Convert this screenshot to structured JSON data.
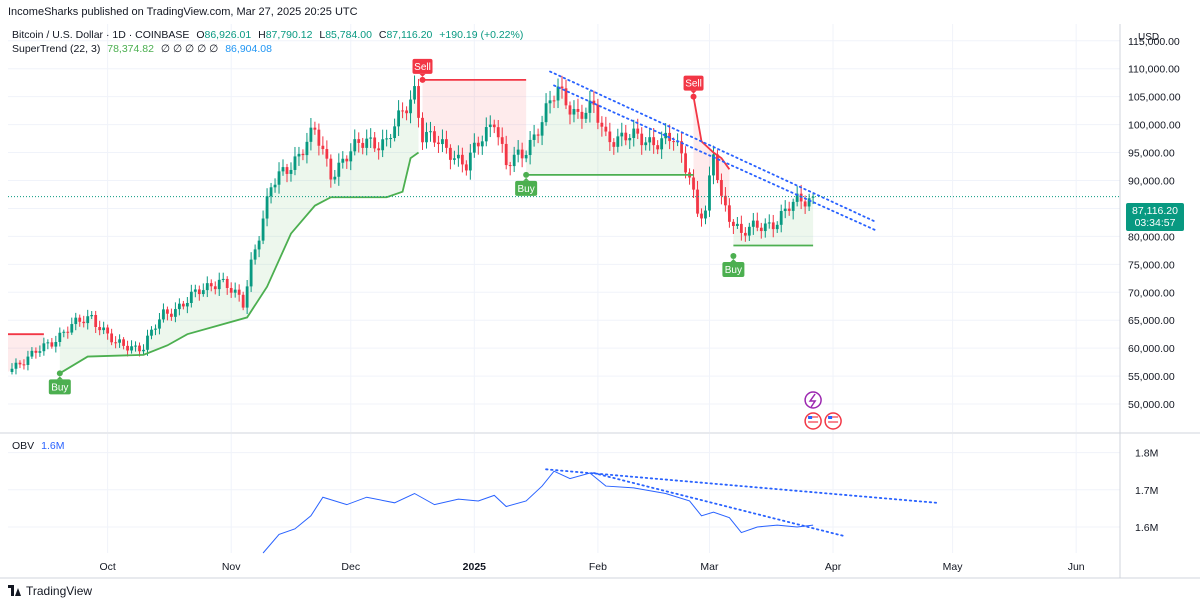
{
  "header": {
    "published": "IncomeSharks published on TradingView.com, Mar 27, 2025 20:25 UTC"
  },
  "symbol": {
    "name": "Bitcoin / U.S. Dollar · 1D · COINBASE",
    "o_label": "O",
    "o": "86,926.01",
    "h_label": "H",
    "h": "87,790.12",
    "l_label": "L",
    "l": "85,784.00",
    "c_label": "C",
    "c": "87,116.20",
    "change": "+190.19 (+0.22%)"
  },
  "supertrend": {
    "name": "SuperTrend (22, 3)",
    "value": "78,374.82",
    "empties": "∅ ∅ ∅ ∅ ∅",
    "value2": "86,904.08"
  },
  "obv_legend": {
    "name": "OBV",
    "value": "1.6M"
  },
  "price_tag": {
    "price": "87,116.20",
    "countdown": "03:34:57"
  },
  "axis": {
    "currency": "USD"
  },
  "footer": {
    "brand": "TradingView"
  },
  "colors": {
    "up": "#089981",
    "down": "#f23645",
    "st_up": "#4caf50",
    "st_down": "#f23645",
    "obv": "#2962ff",
    "trend": "#2962ff"
  },
  "signals": [
    {
      "label": "Buy",
      "date": "2024-09-19",
      "price": 55500
    },
    {
      "label": "Sell",
      "date": "2024-12-19",
      "price": 108000
    },
    {
      "label": "Buy",
      "date": "2025-01-14",
      "price": 91000
    },
    {
      "label": "Sell",
      "date": "2025-02-25",
      "price": 105000
    },
    {
      "label": "Buy",
      "date": "2025-03-07",
      "price": 76500
    }
  ],
  "chart_data": [
    {
      "type": "candlestick",
      "title": "Bitcoin / U.S. Dollar · 1D · COINBASE",
      "ylim": [
        45000,
        118000
      ],
      "y_ticks": [
        50000,
        55000,
        60000,
        65000,
        70000,
        75000,
        80000,
        85000,
        90000,
        95000,
        100000,
        105000,
        110000,
        115000
      ],
      "y_tick_labels": [
        "50,000.00",
        "55,000.00",
        "60,000.00",
        "65,000.00",
        "70,000.00",
        "75,000.00",
        "80,000.00",
        "85,000.00",
        "90,000.00",
        "95,000.00",
        "100,000.00",
        "105,000.00",
        "110,000.00",
        "115,000.00"
      ],
      "x_labels": [
        "Oct",
        "Nov",
        "Dec",
        "2025",
        "Feb",
        "Mar",
        "Apr",
        "May",
        "Jun"
      ],
      "x_label_dates": [
        "2024-10-01",
        "2024-11-01",
        "2024-12-01",
        "2025-01-01",
        "2025-02-01",
        "2025-03-01",
        "2025-04-01",
        "2025-05-01",
        "2025-06-01"
      ],
      "x_range": [
        "2024-09-06",
        "2025-06-12"
      ],
      "close_keypoints": [
        [
          "2024-09-06",
          56500
        ],
        [
          "2024-09-12",
          58500
        ],
        [
          "2024-09-20",
          63000
        ],
        [
          "2024-09-27",
          65800
        ],
        [
          "2024-10-03",
          60500
        ],
        [
          "2024-10-10",
          60300
        ],
        [
          "2024-10-15",
          66000
        ],
        [
          "2024-10-21",
          68500
        ],
        [
          "2024-10-29",
          72500
        ],
        [
          "2024-11-04",
          67800
        ],
        [
          "2024-11-06",
          75500
        ],
        [
          "2024-11-11",
          88500
        ],
        [
          "2024-11-13",
          90500
        ],
        [
          "2024-11-22",
          98500
        ],
        [
          "2024-11-26",
          91500
        ],
        [
          "2024-12-05",
          97500
        ],
        [
          "2024-12-10",
          96500
        ],
        [
          "2024-12-17",
          106500
        ],
        [
          "2024-12-19",
          98000
        ],
        [
          "2024-12-26",
          95500
        ],
        [
          "2024-12-30",
          92500
        ],
        [
          "2025-01-06",
          101500
        ],
        [
          "2025-01-09",
          92500
        ],
        [
          "2025-01-13",
          94500
        ],
        [
          "2025-01-20",
          103500
        ],
        [
          "2025-01-22",
          106000
        ],
        [
          "2025-01-27",
          102000
        ],
        [
          "2025-01-31",
          102500
        ],
        [
          "2025-02-03",
          98000
        ],
        [
          "2025-02-10",
          97500
        ],
        [
          "2025-02-20",
          97000
        ],
        [
          "2025-02-24",
          91500
        ],
        [
          "2025-02-26",
          84500
        ],
        [
          "2025-02-28",
          84000
        ],
        [
          "2025-03-02",
          94500
        ],
        [
          "2025-03-04",
          86500
        ],
        [
          "2025-03-09",
          80500
        ],
        [
          "2025-03-13",
          81500
        ],
        [
          "2025-03-18",
          83000
        ],
        [
          "2025-03-23",
          86200
        ],
        [
          "2025-03-26",
          87000
        ],
        [
          "2025-03-27",
          87116.2
        ]
      ],
      "last_ohlc": {
        "date": "2025-03-27",
        "open": 86926.01,
        "high": 87790.12,
        "low": 85784.0,
        "close": 87116.2
      },
      "series": [
        {
          "name": "SuperTrend (22, 3)",
          "segments": [
            {
              "trend": "down",
              "points": [
                [
                  "2024-09-06",
                  62500
                ],
                [
                  "2024-09-15",
                  62500
                ]
              ]
            },
            {
              "trend": "up",
              "points": [
                [
                  "2024-09-19",
                  55500
                ],
                [
                  "2024-09-26",
                  58500
                ],
                [
                  "2024-10-10",
                  58800
                ],
                [
                  "2024-10-16",
                  60500
                ],
                [
                  "2024-10-21",
                  62500
                ],
                [
                  "2024-11-05",
                  65500
                ],
                [
                  "2024-11-10",
                  71000
                ],
                [
                  "2024-11-16",
                  80500
                ],
                [
                  "2024-11-22",
                  85500
                ],
                [
                  "2024-11-26",
                  87000
                ],
                [
                  "2024-12-10",
                  87000
                ],
                [
                  "2024-12-14",
                  88000
                ],
                [
                  "2024-12-16",
                  94000
                ],
                [
                  "2024-12-18",
                  95000
                ]
              ]
            },
            {
              "trend": "down",
              "points": [
                [
                  "2024-12-19",
                  108000
                ],
                [
                  "2025-01-14",
                  108000
                ]
              ]
            },
            {
              "trend": "up",
              "points": [
                [
                  "2025-01-14",
                  91000
                ],
                [
                  "2025-01-18",
                  91000
                ],
                [
                  "2025-02-25",
                  91000
                ]
              ]
            },
            {
              "trend": "down",
              "points": [
                [
                  "2025-02-25",
                  105000
                ],
                [
                  "2025-02-27",
                  97000
                ],
                [
                  "2025-03-02",
                  95000
                ],
                [
                  "2025-03-04",
                  94000
                ],
                [
                  "2025-03-06",
                  92000
                ]
              ]
            },
            {
              "trend": "up",
              "points": [
                [
                  "2025-03-07",
                  78374.82
                ],
                [
                  "2025-03-27",
                  78374.82
                ]
              ]
            }
          ]
        },
        {
          "name": "Trendline (upper)",
          "points": [
            [
              "2025-01-20",
              109500
            ],
            [
              "2025-04-12",
              82500
            ]
          ]
        },
        {
          "name": "Trendline (lower)",
          "points": [
            [
              "2025-01-21",
              107000
            ],
            [
              "2025-04-12",
              81000
            ]
          ]
        }
      ]
    },
    {
      "type": "line",
      "title": "OBV",
      "ylim": [
        1.53,
        1.85
      ],
      "y_ticks": [
        1.6,
        1.7,
        1.8
      ],
      "y_tick_labels": [
        "1.6M",
        "1.7M",
        "1.8M"
      ],
      "series": [
        {
          "name": "OBV",
          "points": [
            [
              "2024-11-09",
              1.53
            ],
            [
              "2024-11-13",
              1.58
            ],
            [
              "2024-11-17",
              1.595
            ],
            [
              "2024-11-21",
              1.63
            ],
            [
              "2024-11-24",
              1.68
            ],
            [
              "2024-11-30",
              1.66
            ],
            [
              "2024-12-05",
              1.68
            ],
            [
              "2024-12-12",
              1.665
            ],
            [
              "2024-12-17",
              1.69
            ],
            [
              "2024-12-22",
              1.66
            ],
            [
              "2024-12-28",
              1.675
            ],
            [
              "2025-01-02",
              1.67
            ],
            [
              "2025-01-06",
              1.685
            ],
            [
              "2025-01-09",
              1.655
            ],
            [
              "2025-01-14",
              1.67
            ],
            [
              "2025-01-18",
              1.71
            ],
            [
              "2025-01-21",
              1.75
            ],
            [
              "2025-01-25",
              1.73
            ],
            [
              "2025-01-30",
              1.745
            ],
            [
              "2025-02-03",
              1.71
            ],
            [
              "2025-02-10",
              1.705
            ],
            [
              "2025-02-18",
              1.69
            ],
            [
              "2025-02-24",
              1.67
            ],
            [
              "2025-02-27",
              1.63
            ],
            [
              "2025-03-02",
              1.64
            ],
            [
              "2025-03-06",
              1.625
            ],
            [
              "2025-03-09",
              1.585
            ],
            [
              "2025-03-13",
              1.6
            ],
            [
              "2025-03-18",
              1.605
            ],
            [
              "2025-03-23",
              1.6
            ],
            [
              "2025-03-27",
              1.605
            ]
          ]
        },
        {
          "name": "Trendline (upper)",
          "points": [
            [
              "2025-01-19",
              1.755
            ],
            [
              "2025-04-27",
              1.665
            ]
          ]
        },
        {
          "name": "Trendline (lower)",
          "points": [
            [
              "2025-01-31",
              1.745
            ],
            [
              "2025-04-04",
              1.575
            ]
          ]
        }
      ]
    }
  ]
}
